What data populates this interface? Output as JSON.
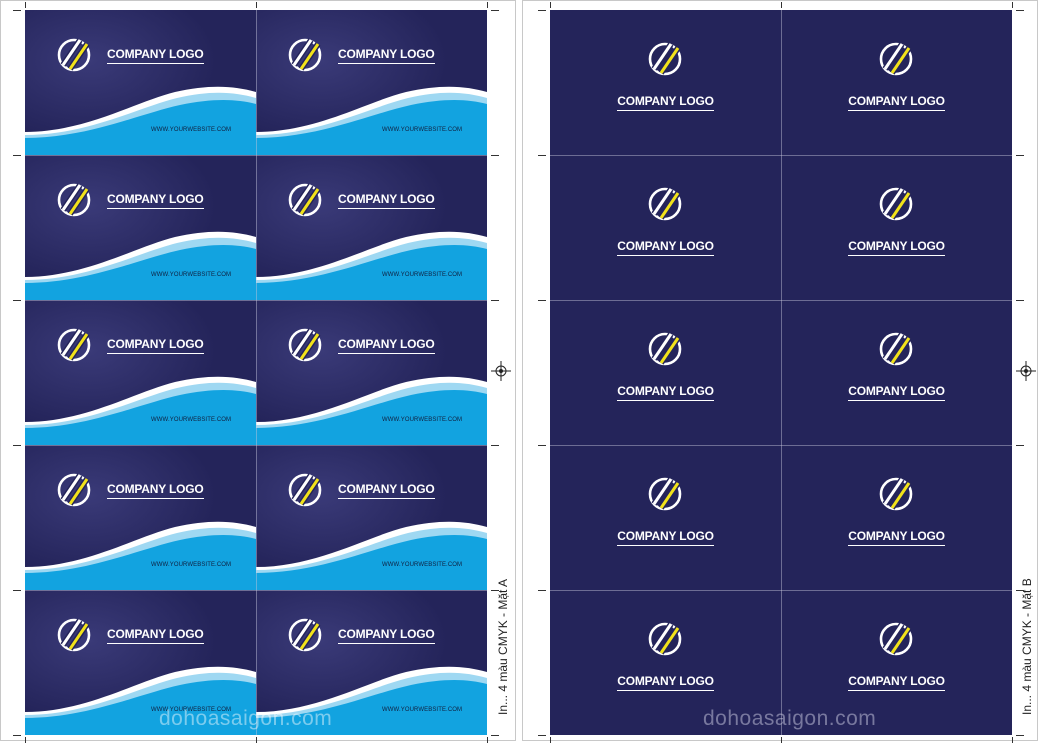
{
  "side_a": {
    "label": "In... 4 màu CMYK - Mặt A",
    "watermark": "dohoasaigon.com",
    "card_title": "COMPANY LOGO",
    "card_url": "WWW.YOURWEBSITE.COM",
    "rows": 5,
    "cols": 2
  },
  "side_b": {
    "label": "In... 4 màu CMYK - Mặt B",
    "watermark": "dohoasaigon.com",
    "card_title": "COMPANY LOGO",
    "rows": 5,
    "cols": 2
  },
  "colors": {
    "card_navy": "#24245a",
    "wave_blue": "#12a3e0",
    "wave_light": "#9fd8f2",
    "logo_yellow": "#f2e21a"
  },
  "icons": {
    "logo": "slashed-circle-logo-icon",
    "registration": "registration-mark-icon"
  }
}
